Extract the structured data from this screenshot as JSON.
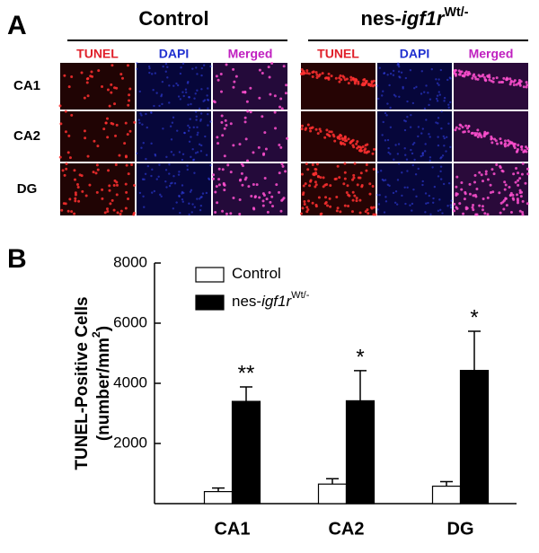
{
  "panel_a": {
    "label": "A",
    "rows": [
      "CA1",
      "CA2",
      "DG"
    ],
    "groups": [
      {
        "title": {
          "prefix": "Control"
        },
        "columns": [
          "TUNEL",
          "DAPI",
          "Merged"
        ]
      },
      {
        "title": {
          "prefix": "nes-",
          "italic": "igf1r",
          "sup": "Wt/-"
        },
        "columns": [
          "TUNEL",
          "DAPI",
          "Merged"
        ]
      }
    ]
  },
  "chart_data": {
    "type": "bar",
    "panel_label": "B",
    "ylabel_line1": "TUNEL-Positive Cells",
    "ylabel_line2": {
      "text": "(number/mm",
      "sup": "2",
      "end": ")"
    },
    "categories": [
      "CA1",
      "CA2",
      "DG"
    ],
    "series": [
      {
        "name": {
          "prefix": "Control"
        },
        "color": "#ffffff",
        "values": [
          400,
          650,
          580
        ],
        "errors": [
          120,
          180,
          150
        ]
      },
      {
        "name": {
          "prefix": "nes-",
          "italic": "igf1r",
          "sup": "Wt/-"
        },
        "color": "#000000",
        "values": [
          3400,
          3420,
          4430
        ],
        "errors": [
          480,
          1000,
          1300
        ]
      }
    ],
    "significance": [
      "**",
      "*",
      "*"
    ],
    "ylim": [
      0,
      8000
    ],
    "yticks": [
      2000,
      4000,
      6000,
      8000
    ]
  }
}
